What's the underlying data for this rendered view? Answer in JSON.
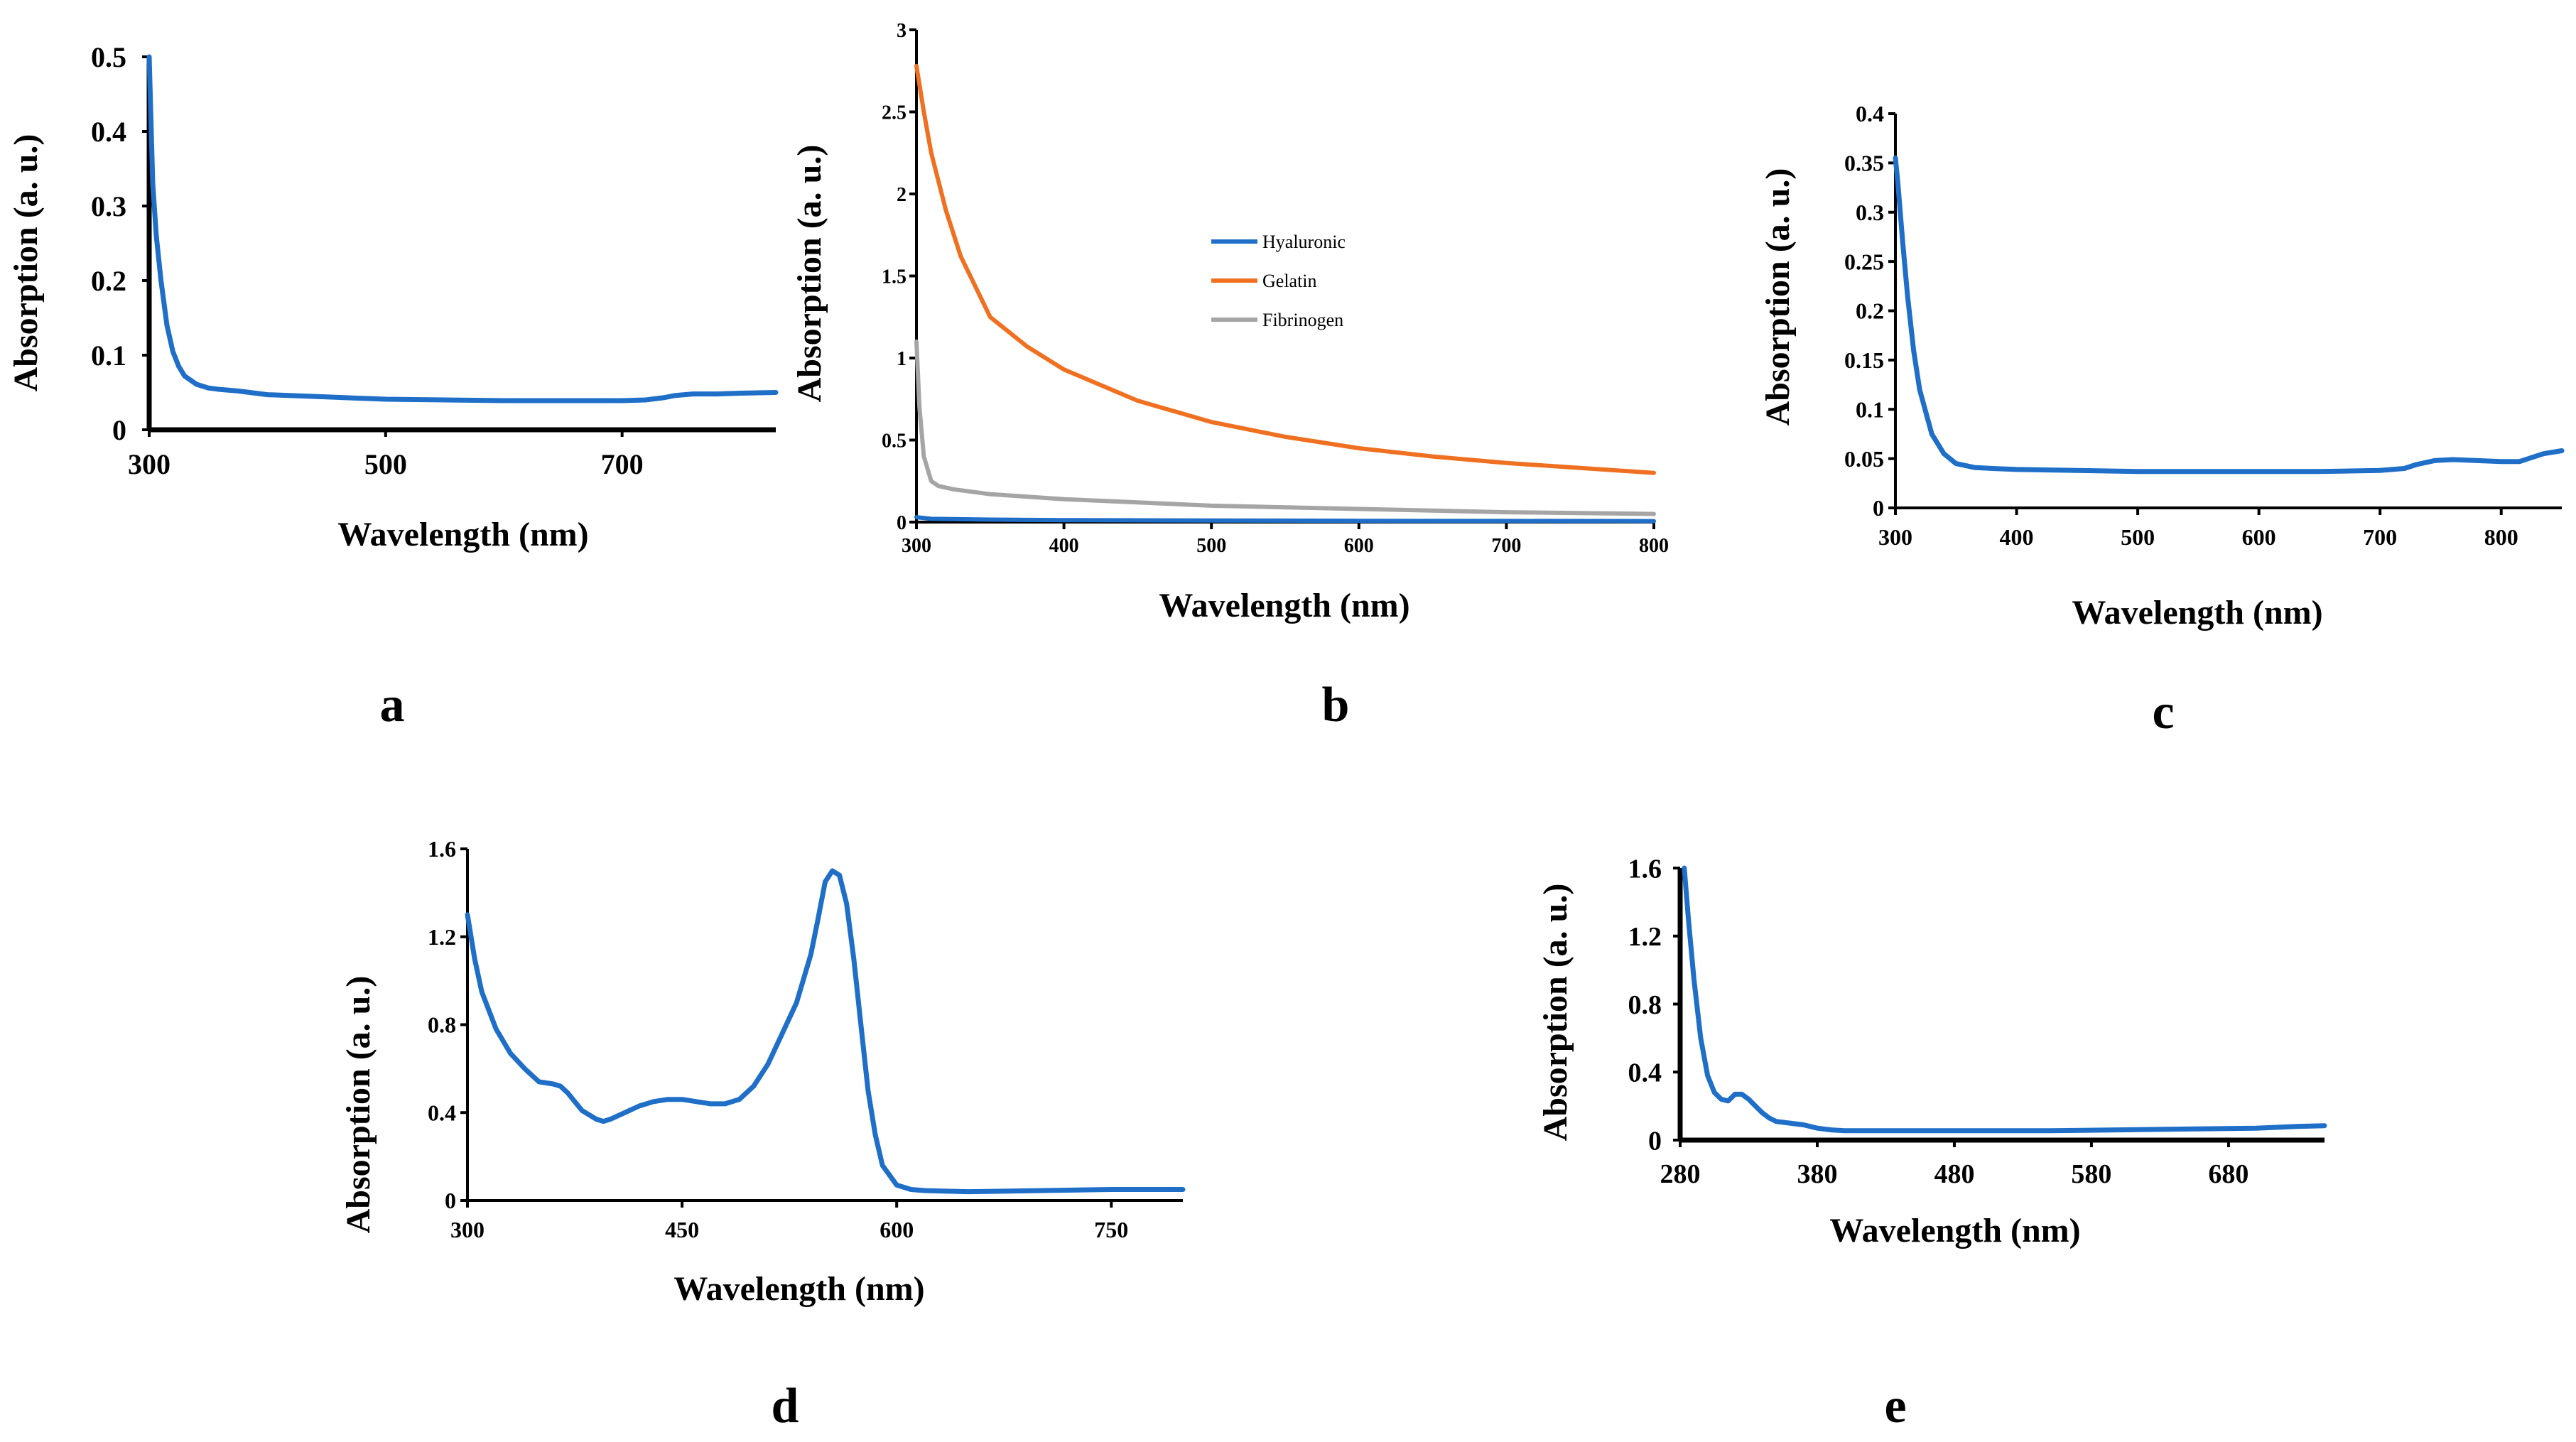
{
  "colors": {
    "blue": "#1F6FC8",
    "orange": "#F07021",
    "gray": "#A5A5A5",
    "axis": "#000000"
  },
  "chart_data": [
    {
      "panel": "a",
      "type": "line",
      "xlabel": "Wavelength (nm)",
      "ylabel": "Absorption (a. u.)",
      "xlim": [
        300,
        830
      ],
      "ylim": [
        0,
        0.5
      ],
      "xticks": [
        300,
        500,
        700
      ],
      "yticks": [
        0,
        0.1,
        0.2,
        0.3,
        0.4,
        0.5
      ],
      "ytick_labels": [
        "0",
        "0.1",
        "0.2",
        "0.3",
        "0.4",
        "0.5"
      ],
      "series": [
        {
          "color": "#1F6FC8",
          "x": [
            300,
            303,
            306,
            310,
            315,
            320,
            325,
            330,
            340,
            350,
            360,
            375,
            400,
            450,
            500,
            550,
            600,
            650,
            700,
            720,
            735,
            745,
            760,
            780,
            800,
            830
          ],
          "y": [
            0.5,
            0.33,
            0.26,
            0.2,
            0.14,
            0.105,
            0.085,
            0.072,
            0.061,
            0.056,
            0.054,
            0.052,
            0.047,
            0.044,
            0.041,
            0.04,
            0.039,
            0.039,
            0.039,
            0.04,
            0.043,
            0.046,
            0.048,
            0.048,
            0.049,
            0.05
          ]
        }
      ]
    },
    {
      "panel": "b",
      "type": "line",
      "xlabel": "Wavelength (nm)",
      "ylabel": "Absorption (a. u.)",
      "xlim": [
        300,
        800
      ],
      "ylim": [
        0,
        3
      ],
      "xticks": [
        300,
        400,
        500,
        600,
        700,
        800
      ],
      "yticks": [
        0,
        0.5,
        1,
        1.5,
        2,
        2.5,
        3
      ],
      "ytick_labels": [
        "0",
        "0.5",
        "1",
        "1.5",
        "2",
        "2.5",
        "3"
      ],
      "legend": [
        "Hyaluronic",
        "Gelatin",
        "Fibrinogen"
      ],
      "series": [
        {
          "name": "Hyaluronic",
          "color": "#1F6FC8",
          "x": [
            300,
            310,
            350,
            400,
            500,
            600,
            700,
            800
          ],
          "y": [
            0.03,
            0.02,
            0.015,
            0.012,
            0.01,
            0.008,
            0.007,
            0.006
          ]
        },
        {
          "name": "Gelatin",
          "color": "#F07021",
          "x": [
            300,
            305,
            310,
            320,
            330,
            350,
            375,
            400,
            450,
            500,
            550,
            600,
            650,
            700,
            750,
            800
          ],
          "y": [
            2.78,
            2.5,
            2.25,
            1.9,
            1.62,
            1.25,
            1.07,
            0.93,
            0.74,
            0.61,
            0.52,
            0.45,
            0.4,
            0.36,
            0.33,
            0.3
          ]
        },
        {
          "name": "Fibrinogen",
          "color": "#A5A5A5",
          "x": [
            300,
            302,
            305,
            310,
            315,
            325,
            350,
            400,
            450,
            500,
            600,
            700,
            800
          ],
          "y": [
            1.1,
            0.7,
            0.4,
            0.25,
            0.22,
            0.2,
            0.17,
            0.14,
            0.12,
            0.1,
            0.08,
            0.06,
            0.05
          ]
        }
      ]
    },
    {
      "panel": "c",
      "type": "line",
      "xlabel": "Wavelength (nm)",
      "ylabel": "Absorption (a. u.)",
      "xlim": [
        300,
        850
      ],
      "ylim": [
        0,
        0.4
      ],
      "xticks": [
        300,
        400,
        500,
        600,
        700,
        800
      ],
      "yticks": [
        0,
        0.05,
        0.1,
        0.15,
        0.2,
        0.25,
        0.3,
        0.35,
        0.4
      ],
      "ytick_labels": [
        "0",
        "0.05",
        "0.1",
        "0.15",
        "0.2",
        "0.25",
        "0.3",
        "0.35",
        "0.4"
      ],
      "series": [
        {
          "color": "#1F6FC8",
          "x": [
            300,
            302,
            306,
            310,
            315,
            320,
            330,
            340,
            350,
            365,
            380,
            400,
            450,
            500,
            550,
            600,
            650,
            700,
            720,
            730,
            745,
            760,
            780,
            800,
            815,
            825,
            835,
            850
          ],
          "y": [
            0.355,
            0.33,
            0.27,
            0.215,
            0.16,
            0.12,
            0.075,
            0.055,
            0.045,
            0.041,
            0.04,
            0.039,
            0.038,
            0.037,
            0.037,
            0.037,
            0.037,
            0.038,
            0.04,
            0.044,
            0.048,
            0.049,
            0.048,
            0.047,
            0.047,
            0.051,
            0.055,
            0.058
          ]
        }
      ]
    },
    {
      "panel": "d",
      "type": "line",
      "xlabel": "Wavelength (nm)",
      "ylabel": "Absorption (a. u.)",
      "xlim": [
        300,
        800
      ],
      "ylim": [
        0,
        1.6
      ],
      "xticks": [
        300,
        450,
        600,
        750
      ],
      "yticks": [
        0,
        0.4,
        0.8,
        1.2,
        1.6
      ],
      "ytick_labels": [
        "0",
        "0.4",
        "0.8",
        "1.2",
        "1.6"
      ],
      "series": [
        {
          "color": "#1F6FC8",
          "x": [
            300,
            305,
            310,
            320,
            330,
            340,
            350,
            360,
            365,
            370,
            380,
            390,
            395,
            400,
            410,
            420,
            430,
            440,
            450,
            460,
            470,
            480,
            490,
            500,
            510,
            520,
            530,
            540,
            545,
            550,
            555,
            560,
            565,
            570,
            575,
            580,
            585,
            590,
            600,
            610,
            620,
            650,
            700,
            750,
            800
          ],
          "y": [
            1.3,
            1.1,
            0.95,
            0.78,
            0.67,
            0.6,
            0.54,
            0.53,
            0.52,
            0.49,
            0.41,
            0.37,
            0.36,
            0.37,
            0.4,
            0.43,
            0.45,
            0.46,
            0.46,
            0.45,
            0.44,
            0.44,
            0.46,
            0.52,
            0.62,
            0.76,
            0.9,
            1.12,
            1.28,
            1.45,
            1.5,
            1.48,
            1.35,
            1.1,
            0.8,
            0.5,
            0.3,
            0.16,
            0.07,
            0.05,
            0.045,
            0.04,
            0.045,
            0.05,
            0.05
          ]
        }
      ]
    },
    {
      "panel": "e",
      "type": "line",
      "xlabel": "Wavelength (nm)",
      "ylabel": "Absorption (a. u.)",
      "xlim": [
        280,
        750
      ],
      "ylim": [
        0,
        1.6
      ],
      "xticks": [
        280,
        380,
        480,
        580,
        680
      ],
      "yticks": [
        0,
        0.4,
        0.8,
        1.2,
        1.6
      ],
      "ytick_labels": [
        "0",
        "0.4",
        "0.8",
        "1.2",
        "1.6"
      ],
      "series": [
        {
          "color": "#1F6FC8",
          "x": [
            283,
            286,
            290,
            295,
            300,
            305,
            310,
            315,
            320,
            325,
            330,
            335,
            340,
            345,
            350,
            360,
            370,
            380,
            390,
            400,
            450,
            500,
            550,
            600,
            650,
            700,
            730,
            750
          ],
          "y": [
            1.6,
            1.3,
            0.95,
            0.6,
            0.38,
            0.28,
            0.24,
            0.23,
            0.27,
            0.27,
            0.24,
            0.2,
            0.16,
            0.13,
            0.11,
            0.1,
            0.09,
            0.07,
            0.06,
            0.055,
            0.055,
            0.055,
            0.055,
            0.06,
            0.065,
            0.07,
            0.08,
            0.085
          ]
        }
      ]
    }
  ]
}
